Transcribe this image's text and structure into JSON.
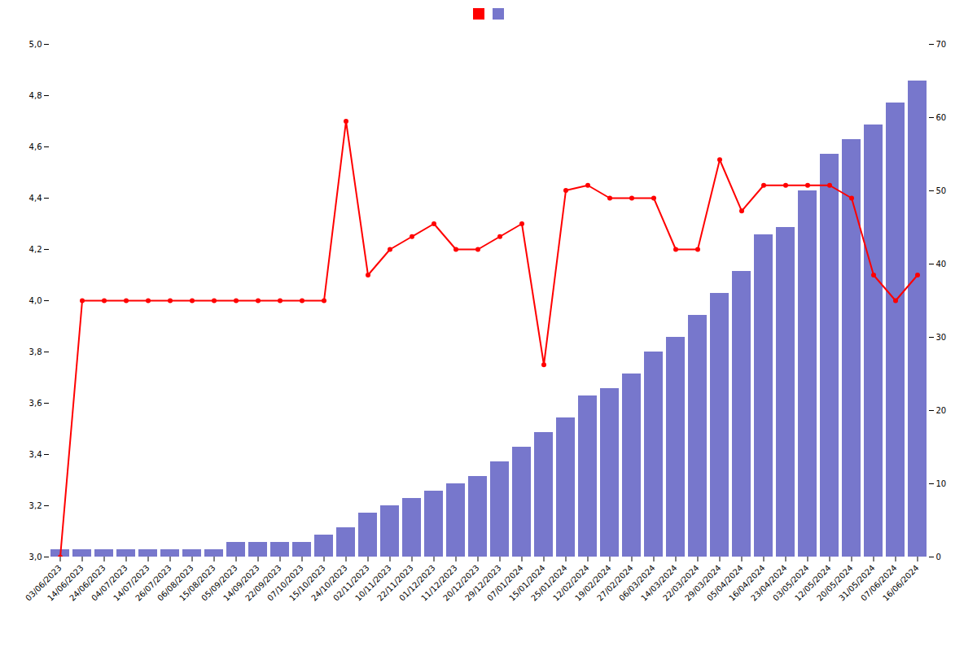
{
  "chart_data": {
    "type": "bar",
    "categories": [
      "03/06/2023",
      "14/06/2023",
      "24/06/2023",
      "04/07/2023",
      "14/07/2023",
      "26/07/2023",
      "06/08/2023",
      "15/08/2023",
      "05/09/2023",
      "14/09/2023",
      "22/09/2023",
      "07/10/2023",
      "15/10/2023",
      "24/10/2023",
      "02/11/2023",
      "10/11/2023",
      "22/11/2023",
      "01/12/2023",
      "11/12/2023",
      "20/12/2023",
      "29/12/2023",
      "07/01/2024",
      "15/01/2024",
      "25/01/2024",
      "12/02/2024",
      "19/02/2024",
      "27/02/2024",
      "06/03/2024",
      "14/03/2024",
      "22/03/2024",
      "29/03/2024",
      "05/04/2024",
      "16/04/2024",
      "23/04/2024",
      "03/05/2024",
      "12/05/2024",
      "20/05/2024",
      "31/05/2024",
      "07/06/2024",
      "16/06/2024"
    ],
    "series": [
      {
        "type": "line",
        "color": "#ff0000",
        "marker": "o",
        "values": [
          3.0,
          4.0,
          4.0,
          4.0,
          4.0,
          4.0,
          4.0,
          4.0,
          4.0,
          4.0,
          4.0,
          4.0,
          4.0,
          4.7,
          4.1,
          4.2,
          4.25,
          4.3,
          4.2,
          4.2,
          4.25,
          4.3,
          3.75,
          4.43,
          4.45,
          4.4,
          4.4,
          4.4,
          4.2,
          4.2,
          4.55,
          4.35,
          4.45,
          4.45,
          4.45,
          4.45,
          4.4,
          4.1,
          4.0,
          4.1
        ]
      },
      {
        "type": "bar",
        "color": "#7777cc",
        "axis": "y2",
        "values": [
          1,
          1,
          1,
          1,
          1,
          1,
          1,
          1,
          2,
          2,
          2,
          2,
          3,
          4,
          6,
          7,
          8,
          9,
          10,
          11,
          13,
          15,
          17,
          19,
          22,
          23,
          25,
          28,
          30,
          33,
          36,
          39,
          44,
          45,
          50,
          55,
          57,
          59,
          62,
          65
        ]
      }
    ],
    "ylim": [
      3.0,
      5.0
    ],
    "yticks": [
      {
        "value": 3.0,
        "label": "3,0"
      },
      {
        "value": 3.2,
        "label": "3,2"
      },
      {
        "value": 3.4,
        "label": "3,4"
      },
      {
        "value": 3.6,
        "label": "3,6"
      },
      {
        "value": 3.8,
        "label": "3,8"
      },
      {
        "value": 4.0,
        "label": "4,0"
      },
      {
        "value": 4.2,
        "label": "4,2"
      },
      {
        "value": 4.4,
        "label": "4,4"
      },
      {
        "value": 4.6,
        "label": "4,6"
      },
      {
        "value": 4.8,
        "label": "4,8"
      },
      {
        "value": 5.0,
        "label": "5,0"
      }
    ],
    "y2lim": [
      0,
      70
    ],
    "y2ticks": [
      0,
      10,
      20,
      30,
      40,
      50,
      60,
      70
    ],
    "grid": false,
    "legend": "upper center"
  }
}
